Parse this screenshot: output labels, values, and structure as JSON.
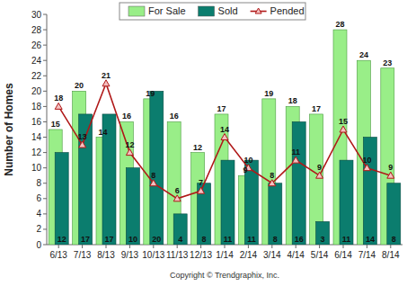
{
  "chart_data": {
    "type": "bar",
    "categories": [
      "6/13",
      "7/13",
      "8/13",
      "9/13",
      "10/13",
      "11/13",
      "12/13",
      "1/14",
      "2/14",
      "3/14",
      "4/14",
      "5/14",
      "6/14",
      "7/14",
      "8/14"
    ],
    "series": [
      {
        "name": "For Sale",
        "type": "bar",
        "color": "#99ee88",
        "values": [
          15,
          20,
          14,
          16,
          19,
          16,
          12,
          17,
          9,
          19,
          18,
          17,
          28,
          24,
          23
        ]
      },
      {
        "name": "Sold",
        "type": "bar",
        "color": "#0b7d6e",
        "values": [
          12,
          17,
          17,
          10,
          20,
          4,
          8,
          11,
          11,
          8,
          16,
          3,
          11,
          14,
          8
        ]
      },
      {
        "name": "Pended",
        "type": "line",
        "color": "#b01818",
        "marker": "triangle",
        "values": [
          18,
          13,
          21,
          12,
          8,
          6,
          7,
          14,
          10,
          8,
          11,
          9,
          15,
          10,
          9
        ]
      }
    ],
    "y_label": "Number of Homes",
    "annotations": [
      "Copyright © Trendgraphix, Inc."
    ],
    "ylim": [
      0,
      30
    ],
    "yticks": [
      0,
      2,
      4,
      6,
      8,
      10,
      12,
      14,
      16,
      18,
      20,
      22,
      24,
      26,
      28,
      30
    ],
    "grid": false,
    "legend": "top",
    "data_labels": true
  }
}
